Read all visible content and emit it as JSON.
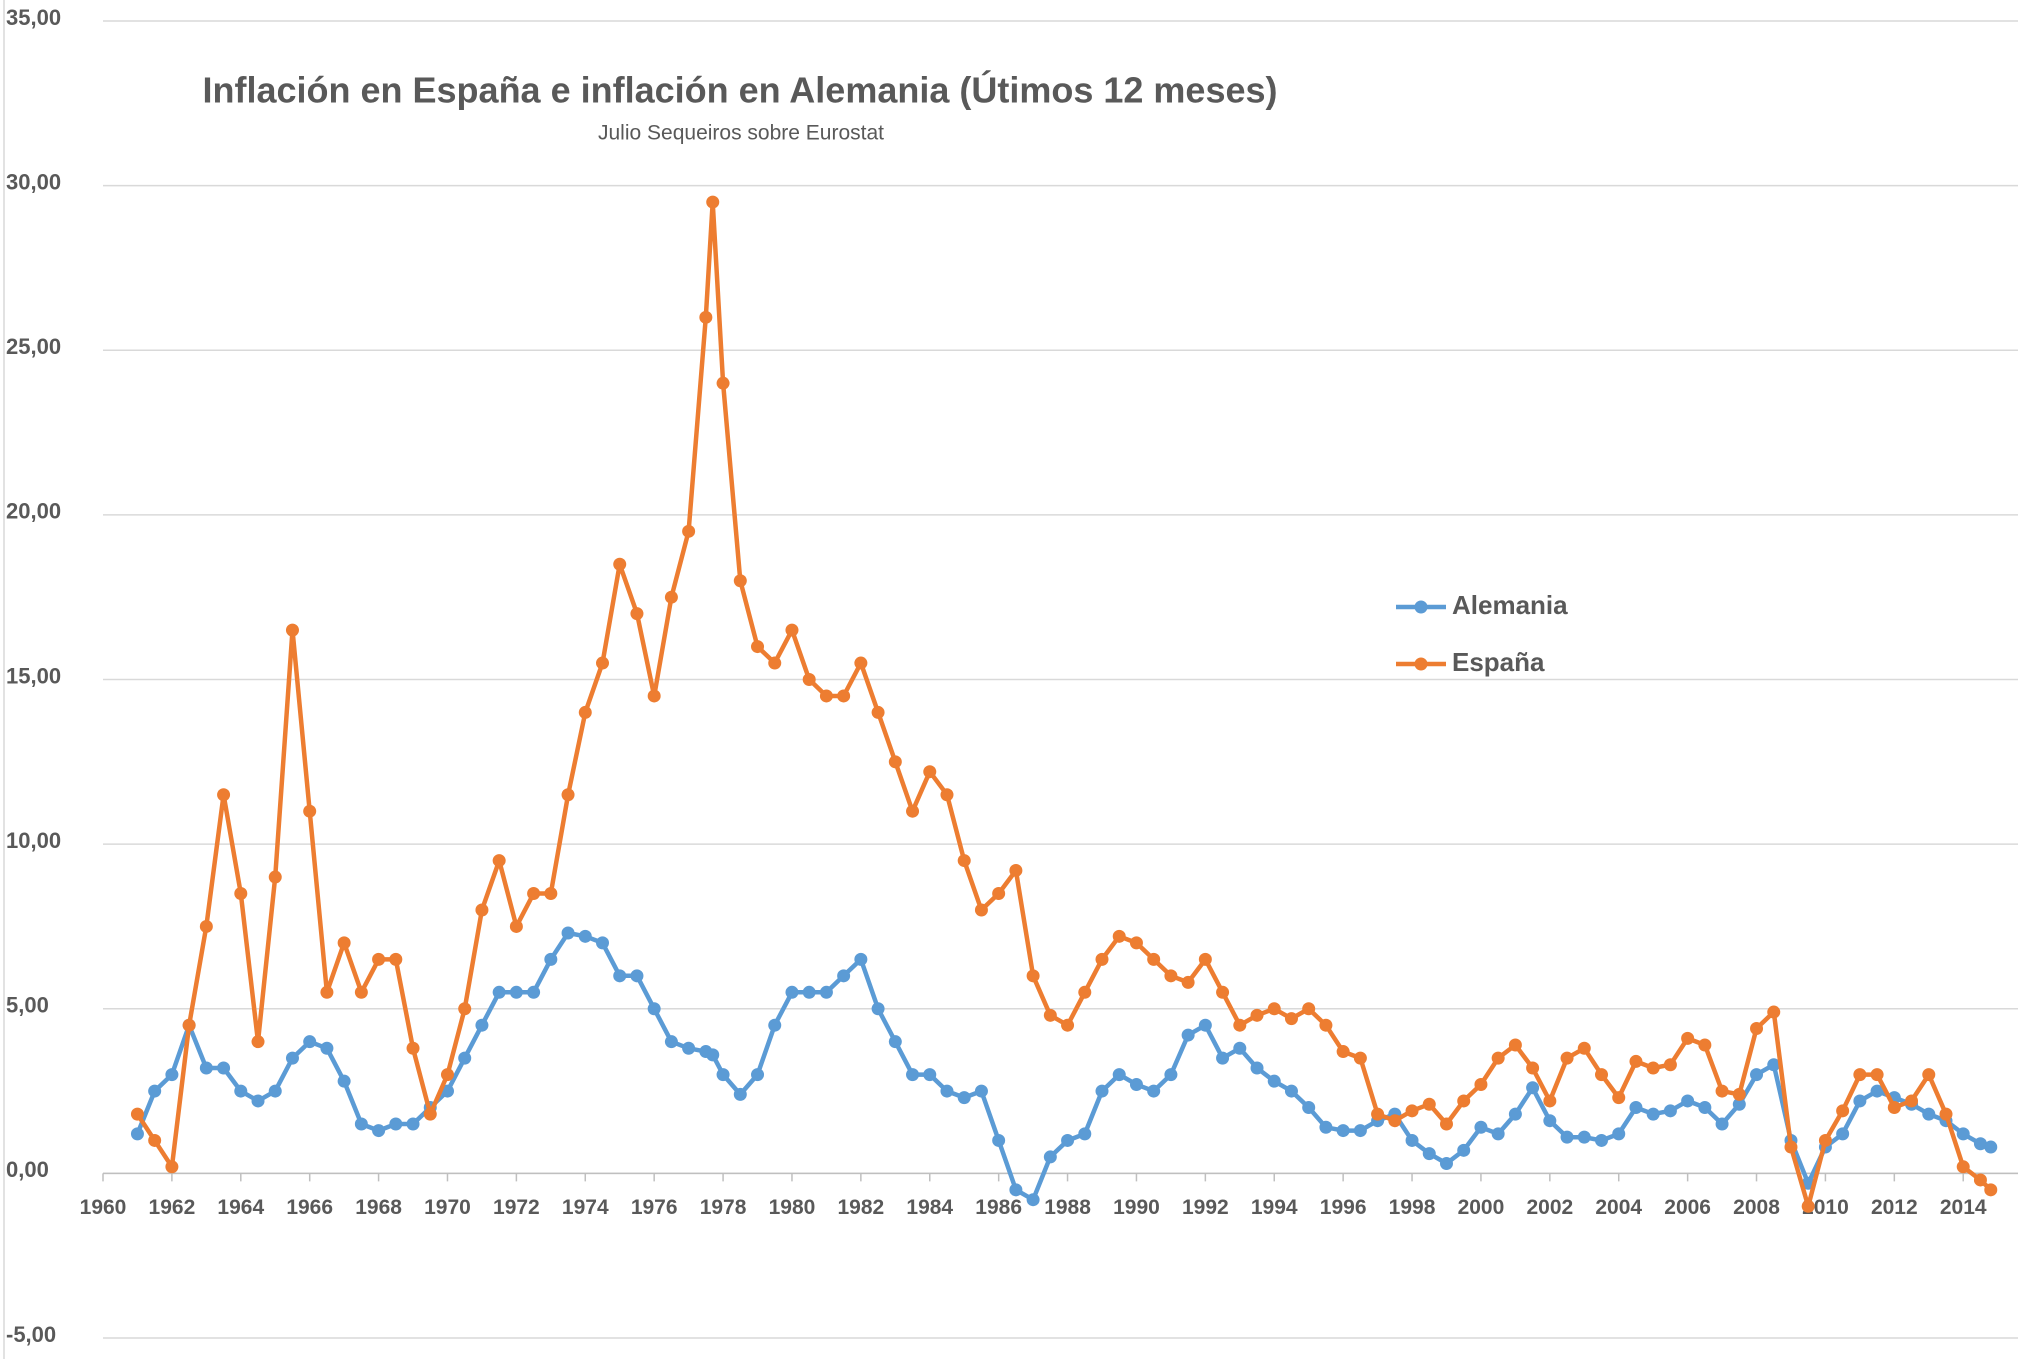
{
  "chart_data": {
    "type": "line",
    "title": "Inflación en España e inflación en Alemania (Útimos 12 meses)",
    "subtitle": "Julio Sequeiros sobre Eurostat",
    "x": [
      1961,
      1961.5,
      1962,
      1962.5,
      1963,
      1963.5,
      1964,
      1964.5,
      1965,
      1965.5,
      1966,
      1966.5,
      1967,
      1967.5,
      1968,
      1968.5,
      1969,
      1969.5,
      1970,
      1970.5,
      1971,
      1971.5,
      1972,
      1972.5,
      1973,
      1973.5,
      1974,
      1974.5,
      1975,
      1975.5,
      1976,
      1976.5,
      1977,
      1977.5,
      1977.7,
      1978,
      1978.5,
      1979,
      1979.5,
      1980,
      1980.5,
      1981,
      1981.5,
      1982,
      1982.5,
      1983,
      1983.5,
      1984,
      1984.5,
      1985,
      1985.5,
      1986,
      1986.5,
      1987,
      1987.5,
      1988,
      1988.5,
      1989,
      1989.5,
      1990,
      1990.5,
      1991,
      1991.5,
      1992,
      1992.5,
      1993,
      1993.5,
      1994,
      1994.5,
      1995,
      1995.5,
      1996,
      1996.5,
      1997,
      1997.5,
      1998,
      1998.5,
      1999,
      1999.5,
      2000,
      2000.5,
      2001,
      2001.5,
      2002,
      2002.5,
      2003,
      2003.5,
      2004,
      2004.5,
      2005,
      2005.5,
      2006,
      2006.5,
      2007,
      2007.5,
      2008,
      2008.5,
      2009,
      2009.5,
      2010,
      2010.5,
      2011,
      2011.5,
      2012,
      2012.5,
      2013,
      2013.5,
      2014,
      2014.5,
      2014.8
    ],
    "series": [
      {
        "name": "Alemania",
        "color": "#5b9bd5",
        "values": [
          1.2,
          2.5,
          3,
          4.5,
          3.2,
          3.2,
          2.5,
          2.2,
          2.5,
          3.5,
          4,
          3.8,
          2.8,
          1.5,
          1.3,
          1.5,
          1.5,
          2,
          2.5,
          3.5,
          4.5,
          5.5,
          5.5,
          5.5,
          6.5,
          7.3,
          7.2,
          7,
          6,
          6,
          5,
          4,
          3.8,
          3.7,
          3.6,
          3,
          2.4,
          3,
          4.5,
          5.5,
          5.5,
          5.5,
          6,
          6.5,
          5,
          4,
          3,
          3,
          2.5,
          2.3,
          2.5,
          1,
          -0.5,
          -0.8,
          0.5,
          1,
          1.2,
          2.5,
          3,
          2.7,
          2.5,
          3,
          4.2,
          4.5,
          3.5,
          3.8,
          3.2,
          2.8,
          2.5,
          2,
          1.4,
          1.3,
          1.3,
          1.6,
          1.8,
          1,
          0.6,
          0.3,
          0.7,
          1.4,
          1.2,
          1.8,
          2.6,
          1.6,
          1.1,
          1.1,
          1,
          1.2,
          2,
          1.8,
          1.9,
          2.2,
          2,
          1.5,
          2.1,
          3,
          3.3,
          1,
          -0.3,
          0.8,
          1.2,
          2.2,
          2.5,
          2.3,
          2.1,
          1.8,
          1.6,
          1.2,
          0.9,
          0.8
        ]
      },
      {
        "name": "España",
        "color": "#ed7d31",
        "values": [
          1.8,
          1.0,
          0.2,
          4.5,
          7.5,
          11.5,
          8.5,
          4.0,
          9,
          16.5,
          11,
          5.5,
          7,
          5.5,
          6.5,
          6.5,
          3.8,
          1.8,
          3,
          5,
          8,
          9.5,
          7.5,
          8.5,
          8.5,
          11.5,
          14,
          15.5,
          18.5,
          17,
          14.5,
          17.5,
          19.5,
          26,
          29.5,
          24,
          18,
          16,
          15.5,
          16.5,
          15,
          14.5,
          14.5,
          15.5,
          14,
          12.5,
          11,
          12.2,
          11.5,
          9.5,
          8,
          8.5,
          9.2,
          6,
          4.8,
          4.5,
          5.5,
          6.5,
          7.2,
          7,
          6.5,
          6,
          5.8,
          6.5,
          5.5,
          4.5,
          4.8,
          5,
          4.7,
          5,
          4.5,
          3.7,
          3.5,
          1.8,
          1.6,
          1.9,
          2.1,
          1.5,
          2.2,
          2.7,
          3.5,
          3.9,
          3.2,
          2.2,
          3.5,
          3.8,
          3,
          2.3,
          3.4,
          3.2,
          3.3,
          4.1,
          3.9,
          2.5,
          2.4,
          4.4,
          4.9,
          0.8,
          -1.0,
          1,
          1.9,
          3,
          3,
          2,
          2.2,
          3,
          1.8,
          0.2,
          -0.2,
          -0.5
        ]
      }
    ],
    "xlim": [
      1960,
      2015.3
    ],
    "xticks": [
      1960,
      1962,
      1964,
      1966,
      1968,
      1970,
      1972,
      1974,
      1976,
      1978,
      1980,
      1982,
      1984,
      1986,
      1988,
      1990,
      1992,
      1994,
      1996,
      1998,
      2000,
      2002,
      2004,
      2006,
      2008,
      2010,
      2012,
      2014
    ],
    "ylim": [
      -5,
      35
    ],
    "yticks": [
      {
        "value": -5,
        "label": "-5,00"
      },
      {
        "value": 0,
        "label": "0,00"
      },
      {
        "value": 5,
        "label": "5,00"
      },
      {
        "value": 10,
        "label": "10,00"
      },
      {
        "value": 15,
        "label": "15,00"
      },
      {
        "value": 20,
        "label": "20,00"
      },
      {
        "value": 25,
        "label": "25,00"
      },
      {
        "value": 30,
        "label": "30,00"
      },
      {
        "value": 35,
        "label": "35,00"
      }
    ],
    "grid": true
  }
}
